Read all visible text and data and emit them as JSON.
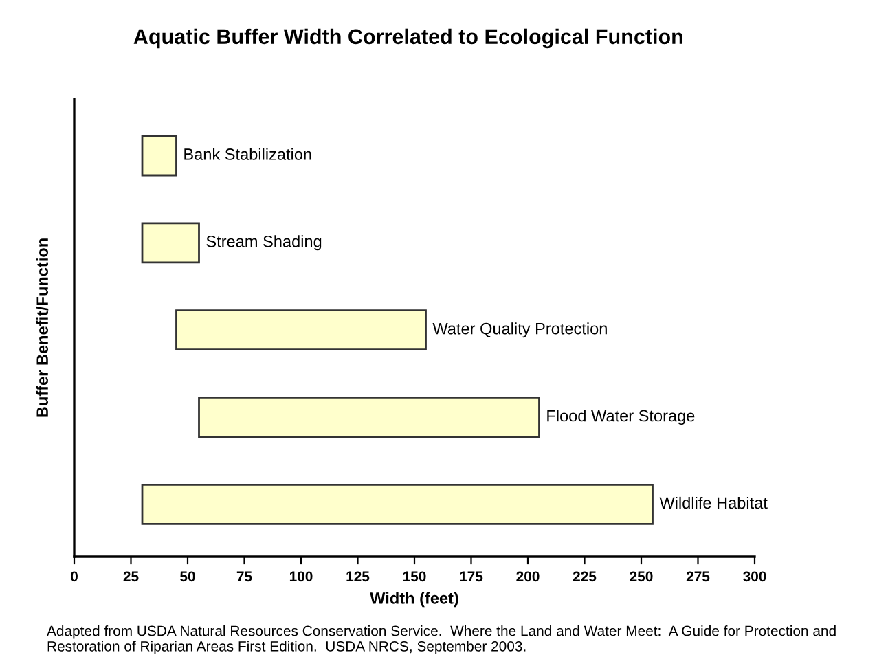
{
  "chart_data": {
    "type": "bar",
    "orientation": "horizontal",
    "title": "Aquatic Buffer Width Correlated to Ecological Function",
    "xlabel": "Width (feet)",
    "ylabel": "Buffer Benefit/Function",
    "categories": [
      "Bank Stabilization",
      "Stream Shading",
      "Water Quality Protection",
      "Flood Water Storage",
      "Wildlife Habitat"
    ],
    "base": [
      30,
      30,
      45,
      55,
      30
    ],
    "values": [
      15,
      25,
      110,
      150,
      225
    ],
    "color": "#ffffcc",
    "xlim": [
      0,
      300
    ],
    "xticks": [
      0,
      25,
      50,
      75,
      100,
      125,
      150,
      175,
      200,
      225,
      250,
      275,
      300
    ],
    "tick_labels": "x",
    "grid": false,
    "legend": false,
    "annotations": [
      "Adapted from USDA Natural Resources Conservation Service.  Where the Land and Water Meet:  A Guide for Protection and Restoration of Riparian Areas First Edition.  USDA NRCS, September 2003."
    ]
  }
}
